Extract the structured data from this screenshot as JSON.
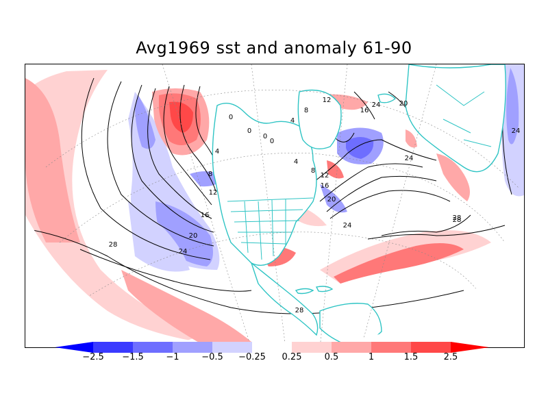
{
  "title": "Avg1969 sst and anomaly 61-90",
  "colorbar": {
    "levels": [
      "-2.5",
      "-1.5",
      "-1",
      "-0.5",
      "-0.25",
      "0.25",
      "0.5",
      "1",
      "1.5",
      "2.5"
    ],
    "colors": [
      "#0000ff",
      "#3a3aff",
      "#6e6eff",
      "#a0a0ff",
      "#d2d2ff",
      "#ffffff",
      "#ffd2d2",
      "#ffa8a8",
      "#ff7878",
      "#ff4848",
      "#ff0000"
    ]
  },
  "contour_labels": [
    "28",
    "24",
    "20",
    "16",
    "12",
    "8",
    "4",
    "0",
    "0",
    "0",
    "0",
    "4",
    "8",
    "12",
    "16",
    "20",
    "24",
    "28",
    "28",
    "24",
    "24",
    "20",
    "16",
    "12",
    "8",
    "4",
    "28",
    "24"
  ],
  "colors": {
    "coastline": "#2ec4c4",
    "contour": "#000000",
    "positive_anomaly": "#ff5a5a",
    "negative_anomaly": "#6e6eff"
  }
}
